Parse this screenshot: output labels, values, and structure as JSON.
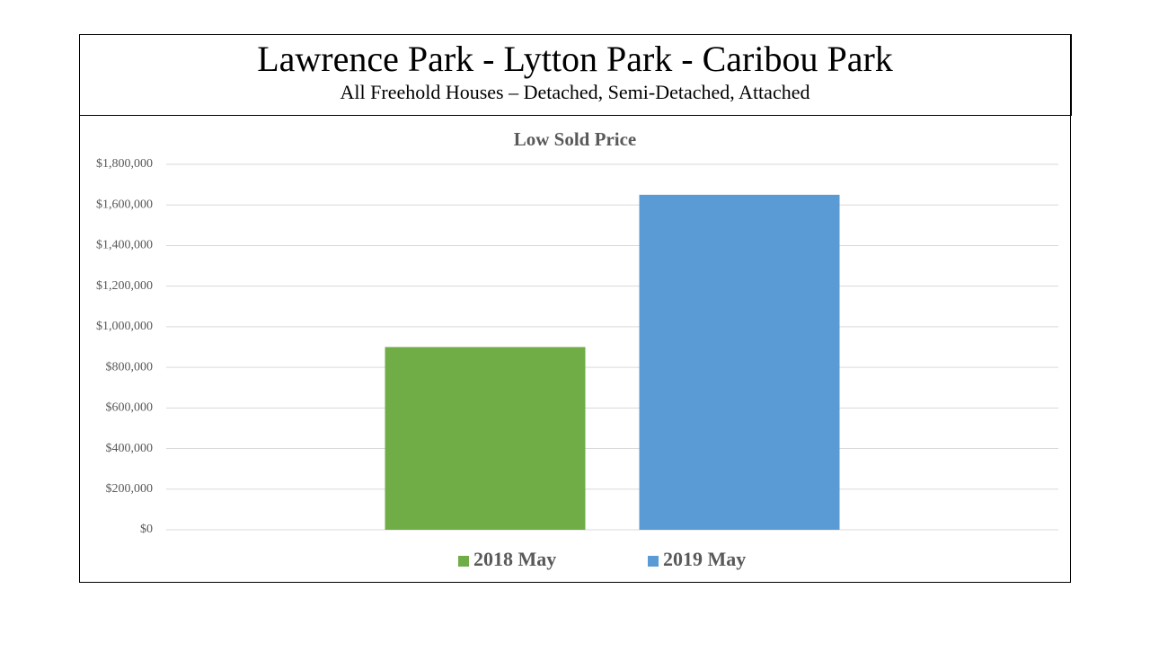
{
  "header": {
    "title": "Lawrence Park - Lytton Park - Caribou Park",
    "subtitle": "All Freehold Houses – Detached, Semi-Detached, Attached"
  },
  "chart_data": {
    "type": "bar",
    "title": "Low Sold Price",
    "categories": [
      null
    ],
    "series": [
      {
        "name": "2018 May",
        "color": "#70ad47",
        "values": [
          900000
        ]
      },
      {
        "name": "2019 May",
        "color": "#5b9bd5",
        "values": [
          1650000
        ]
      }
    ],
    "ylim": [
      0,
      1800000
    ],
    "yticks": [
      {
        "value": 0,
        "label": "$0"
      },
      {
        "value": 200000,
        "label": "$200,000"
      },
      {
        "value": 400000,
        "label": "$400,000"
      },
      {
        "value": 600000,
        "label": "$600,000"
      },
      {
        "value": 800000,
        "label": "$800,000"
      },
      {
        "value": 1000000,
        "label": "$1,000,000"
      },
      {
        "value": 1200000,
        "label": "$1,200,000"
      },
      {
        "value": 1400000,
        "label": "$1,400,000"
      },
      {
        "value": 1600000,
        "label": "$1,600,000"
      },
      {
        "value": 1800000,
        "label": "$1,800,000"
      }
    ],
    "grid": true,
    "legend": "bottom"
  }
}
